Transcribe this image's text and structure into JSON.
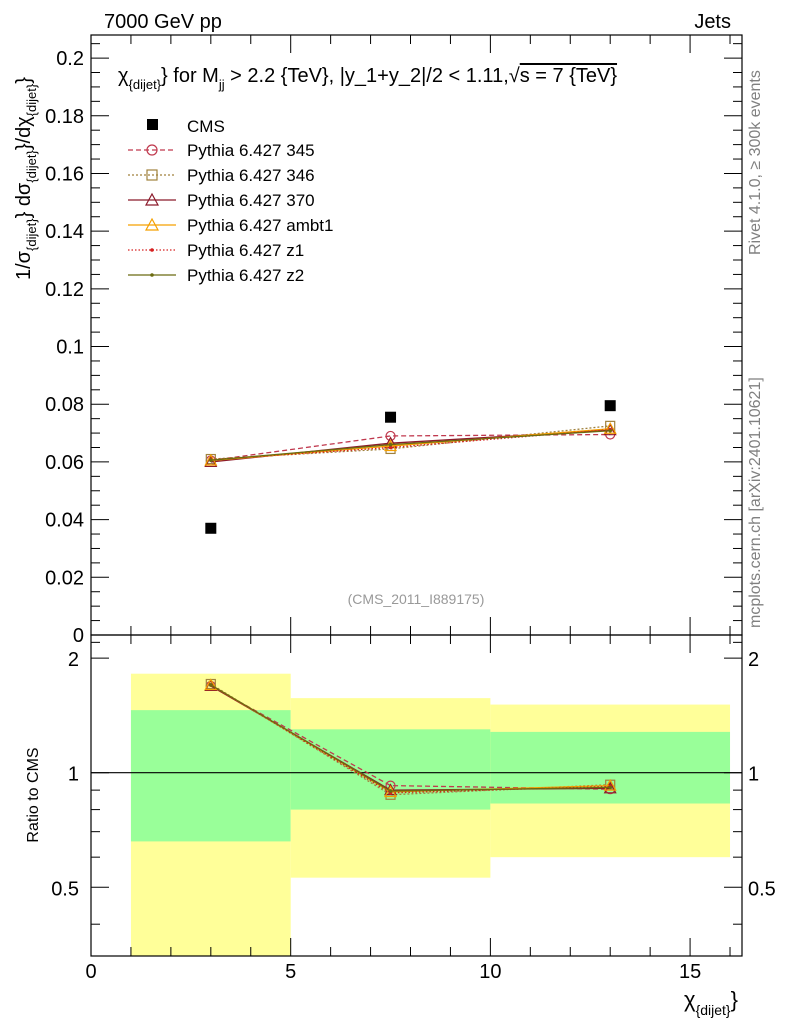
{
  "header": {
    "left": "7000 GeV pp",
    "right": "Jets"
  },
  "side_labels": {
    "rivet": "Rivet 4.1.0, ≥ 300k events",
    "mcplots": "mcplots.cern.ch [arXiv:2401.10621]"
  },
  "chart_data": [
    {
      "panel": "main",
      "type": "line",
      "title": "χ_{dijet}} for M_{jj} > 2.2 {TeV}, |y_1+y_2|/2 < 1.11,√s = 7 {TeV}",
      "title_parts": {
        "chi": "χ",
        "chi_sub": "{dijet}",
        "mid": "} for M",
        "m_sub": "jj",
        "tail": " > 2.2 {TeV}, |y_1+y_2|/2 < 1.11,",
        "sqrt": "√",
        "s_tail": "s = 7 {TeV}"
      },
      "ylabel": "1/σ_{dijet}} dσ_{dijet}}/dχ_{dijet}}",
      "ylabel_parts": {
        "a": "1/σ",
        "a_sub": "{dijet}",
        "b": "} dσ",
        "b_sub": "{dijet}",
        "c": "}/dχ",
        "c_sub": "{dijet}",
        "d": "}"
      },
      "watermark": "(CMS_2011_I889175)",
      "xlim": [
        0,
        16.3
      ],
      "ylim": [
        0,
        0.208
      ],
      "yticks": [
        0,
        0.02,
        0.04,
        0.06,
        0.08,
        0.1,
        0.12,
        0.14,
        0.16,
        0.18,
        0.2
      ],
      "ytick_labels": [
        "0",
        "0.02",
        "0.04",
        "0.06",
        "0.08",
        "0.1",
        "0.12",
        "0.14",
        "0.16",
        "0.18",
        "0.2"
      ],
      "data": {
        "name": "CMS",
        "x": [
          3,
          7.5,
          13
        ],
        "y": [
          0.037,
          0.0755,
          0.0795
        ]
      },
      "series": [
        {
          "name": "Pythia 6.427 345",
          "color": "#c0394e",
          "dash": "5,3",
          "marker": "circle",
          "x": [
            3,
            7.5,
            13
          ],
          "y": [
            0.0605,
            0.069,
            0.0695
          ]
        },
        {
          "name": "Pythia 6.427 346",
          "color": "#a0813c",
          "dash": "2,2",
          "marker": "square",
          "x": [
            3,
            7.5,
            13
          ],
          "y": [
            0.061,
            0.0645,
            0.0725
          ]
        },
        {
          "name": "Pythia 6.427 370",
          "color": "#8b1a2b",
          "dash": "",
          "marker": "triangle",
          "x": [
            3,
            7.5,
            13
          ],
          "y": [
            0.06,
            0.0665,
            0.071
          ]
        },
        {
          "name": "Pythia 6.427 ambt1",
          "color": "#f5a000",
          "dash": "",
          "marker": "triangle",
          "x": [
            3,
            7.5,
            13
          ],
          "y": [
            0.0605,
            0.0655,
            0.0715
          ]
        },
        {
          "name": "Pythia 6.427 z1",
          "color": "#d62020",
          "dash": "1.5,2",
          "marker": "dot",
          "x": [
            3,
            7.5,
            13
          ],
          "y": [
            0.0608,
            0.065,
            0.0712
          ]
        },
        {
          "name": "Pythia 6.427 z2",
          "color": "#6b6b10",
          "dash": "",
          "marker": "dot",
          "x": [
            3,
            7.5,
            13
          ],
          "y": [
            0.0606,
            0.066,
            0.0708
          ]
        }
      ]
    },
    {
      "panel": "ratio",
      "type": "line",
      "ylabel": "Ratio to CMS",
      "xlabel": "χ_{dijet}}",
      "xlabel_parts": {
        "chi": "χ",
        "sub": "{dijet}",
        "close": "}"
      },
      "xlim": [
        0,
        16.3
      ],
      "ylim": [
        0.33,
        2.3
      ],
      "xticks": [
        0,
        5,
        10,
        15
      ],
      "xtick_labels": [
        "0",
        "5",
        "10",
        "15"
      ],
      "yticks": [
        0.5,
        1,
        2
      ],
      "ytick_labels": [
        "0.5",
        "1",
        "2"
      ],
      "reference": 1,
      "uncertainty_bands": [
        {
          "x_lo": 1,
          "x_hi": 5,
          "inner": [
            0.66,
            1.46
          ],
          "outer": [
            0.33,
            1.82
          ]
        },
        {
          "x_lo": 5,
          "x_hi": 10,
          "inner": [
            0.8,
            1.3
          ],
          "outer": [
            0.53,
            1.57
          ]
        },
        {
          "x_lo": 10,
          "x_hi": 16,
          "inner": [
            0.83,
            1.28
          ],
          "outer": [
            0.6,
            1.51
          ]
        }
      ],
      "band_colors": {
        "inner": "#99ff99",
        "outer": "#ffff99"
      },
      "series": [
        {
          "name": "Pythia 6.427 345",
          "x": [
            3,
            7.5,
            13
          ],
          "y": [
            1.69,
            0.925,
            0.905
          ]
        },
        {
          "name": "Pythia 6.427 346",
          "x": [
            3,
            7.5,
            13
          ],
          "y": [
            1.71,
            0.875,
            0.93
          ]
        },
        {
          "name": "Pythia 6.427 370",
          "x": [
            3,
            7.5,
            13
          ],
          "y": [
            1.69,
            0.9,
            0.91
          ]
        },
        {
          "name": "Pythia 6.427 ambt1",
          "x": [
            3,
            7.5,
            13
          ],
          "y": [
            1.7,
            0.89,
            0.925
          ]
        },
        {
          "name": "Pythia 6.427 z1",
          "x": [
            3,
            7.5,
            13
          ],
          "y": [
            1.7,
            0.885,
            0.92
          ]
        },
        {
          "name": "Pythia 6.427 z2",
          "x": [
            3,
            7.5,
            13
          ],
          "y": [
            1.7,
            0.895,
            0.915
          ]
        }
      ]
    }
  ]
}
